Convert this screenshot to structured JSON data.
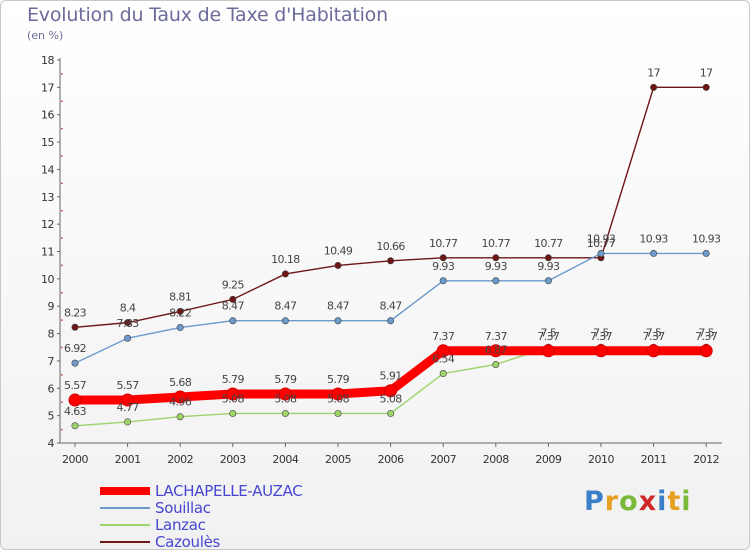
{
  "title": "Evolution du Taux de Taxe d'Habitation",
  "subtitle": "(en %)",
  "brand": {
    "text": "Proxiti",
    "colors": [
      "#3a7fc8",
      "#e8a020",
      "#7aba3a",
      "#d02828",
      "#3a7fc8",
      "#e8a020",
      "#7aba3a"
    ]
  },
  "chart_data": {
    "type": "line",
    "x": [
      "2000",
      "2001",
      "2002",
      "2003",
      "2004",
      "2005",
      "2006",
      "2007",
      "2008",
      "2009",
      "2010",
      "2011",
      "2012"
    ],
    "ylim": [
      4,
      18
    ],
    "yticks": [
      "4",
      "5",
      "6",
      "7",
      "8",
      "9",
      "10",
      "11",
      "12",
      "13",
      "14",
      "15",
      "16",
      "17",
      "18"
    ],
    "grid": false,
    "legend_position": "bottom-left",
    "series": [
      {
        "name": "Cazoulès",
        "color": "#6e1616",
        "values": [
          8.23,
          8.4,
          8.81,
          9.25,
          10.18,
          10.49,
          10.66,
          10.77,
          10.77,
          10.77,
          10.77,
          17,
          17
        ],
        "labels": [
          "8.23",
          "8.4",
          "8.81",
          "9.25",
          "10.18",
          "10.49",
          "10.66",
          "10.77",
          "10.77",
          "10.77",
          "10.77",
          "17",
          "17"
        ]
      },
      {
        "name": "Souillac",
        "color": "#6b9acb",
        "values": [
          6.92,
          7.83,
          8.22,
          8.47,
          8.47,
          8.47,
          8.47,
          9.93,
          9.93,
          9.93,
          10.93,
          10.93,
          10.93
        ],
        "labels": [
          "6.92",
          "7.83",
          "8.22",
          "8.47",
          "8.47",
          "8.47",
          "8.47",
          "9.93",
          "9.93",
          "9.93",
          "10.93",
          "10.93",
          "10.93"
        ]
      },
      {
        "name": "Lanzac",
        "color": "#9ed36a",
        "values": [
          4.63,
          4.77,
          4.96,
          5.08,
          5.08,
          5.08,
          5.08,
          6.54,
          6.87,
          7.5,
          7.5,
          7.5,
          7.5
        ],
        "labels": [
          "4.63",
          "4.77",
          "4.96",
          "5.08",
          "5.08",
          "5.08",
          "5.08",
          "6.54",
          "6.87",
          "7.5",
          "7.5",
          "7.5",
          "7.5"
        ]
      },
      {
        "name": "LACHAPELLE-AUZAC",
        "color": "#ff0000",
        "values": [
          5.57,
          5.57,
          5.68,
          5.79,
          5.79,
          5.79,
          5.91,
          7.37,
          7.37,
          7.37,
          7.37,
          7.37,
          7.37
        ],
        "labels": [
          "5.57",
          "5.57",
          "5.68",
          "5.79",
          "5.79",
          "5.79",
          "5.91",
          "7.37",
          "7.37",
          "7.37",
          "7.37",
          "7.37",
          "7.37"
        ]
      }
    ],
    "legend": [
      {
        "name": "LACHAPELLE-AUZAC",
        "color": "#ff0000"
      },
      {
        "name": "Souillac",
        "color": "#6b9acb"
      },
      {
        "name": "Lanzac",
        "color": "#9ed36a"
      },
      {
        "name": "Cazoulès",
        "color": "#6e1616"
      }
    ]
  }
}
